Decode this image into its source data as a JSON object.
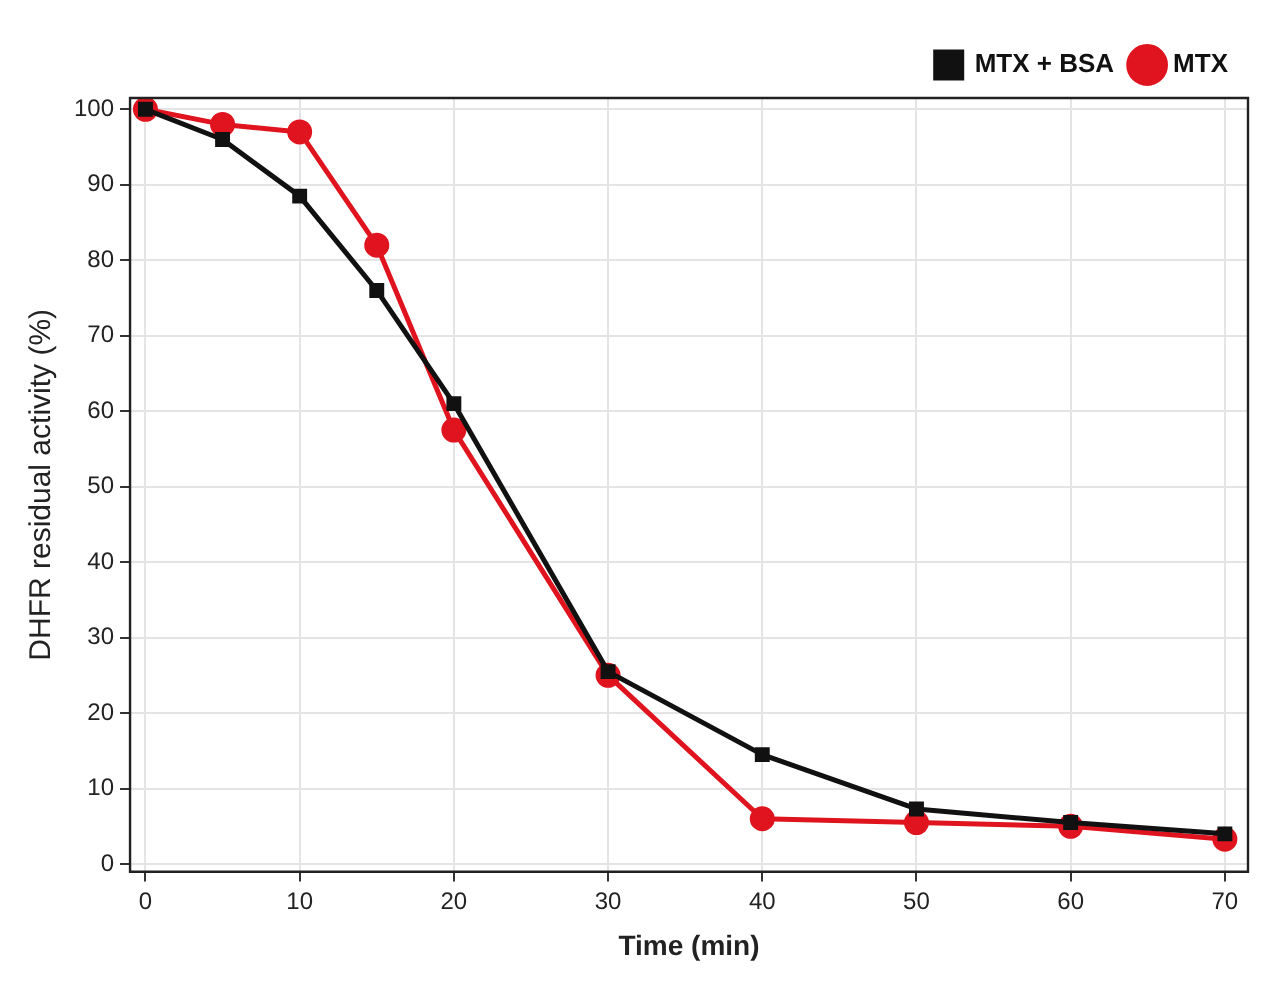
{
  "chart_data": {
    "type": "line",
    "xlabel": "Time (min)",
    "ylabel": "DHFR residual activity (%)",
    "x": [
      0,
      5,
      10,
      15,
      20,
      30,
      40,
      50,
      60,
      70
    ],
    "xlim": [
      -1,
      71.5
    ],
    "xticks": [
      0,
      10,
      20,
      30,
      40,
      50,
      60,
      70
    ],
    "ylim": [
      -1,
      101.5
    ],
    "yticks": [
      0,
      10,
      20,
      30,
      40,
      50,
      60,
      70,
      80,
      90,
      100
    ],
    "grid": true,
    "legend": "top right",
    "line_style": "solid",
    "series": [
      {
        "name": "MTX",
        "color": "#e0141e",
        "marker": "circle",
        "values": [
          100,
          98,
          97,
          82,
          57.5,
          25,
          6,
          5.5,
          5,
          3.3
        ]
      },
      {
        "name": "MTX + BSA",
        "color": "#111111",
        "marker": "square",
        "values": [
          100,
          96,
          88.5,
          76,
          61,
          25.5,
          14.5,
          7.3,
          5.5,
          4
        ]
      }
    ]
  }
}
